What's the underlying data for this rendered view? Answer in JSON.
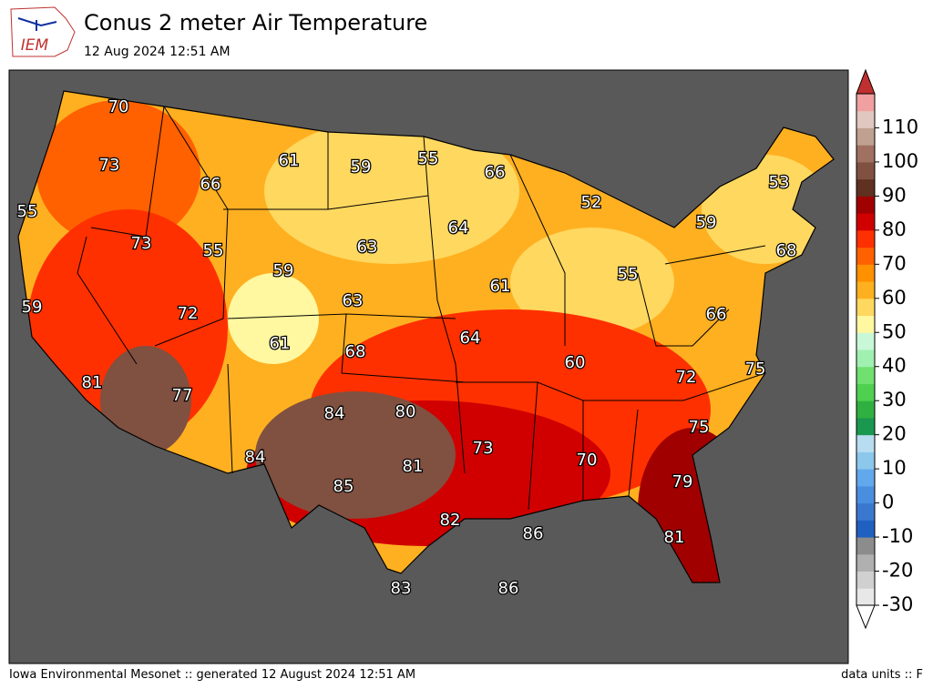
{
  "header": {
    "logo": "IEM",
    "title": "Conus 2 meter Air Temperature",
    "subtitle": "12 Aug 2024 12:51 AM"
  },
  "map": {
    "labels": [
      "70",
      "73",
      "55",
      "73",
      "55",
      "59",
      "72",
      "81",
      "77",
      "61",
      "66",
      "59",
      "55",
      "66",
      "52",
      "53",
      "59",
      "68",
      "64",
      "63",
      "59",
      "63",
      "61",
      "55",
      "61",
      "68",
      "64",
      "66",
      "60",
      "72",
      "75",
      "84",
      "80",
      "84",
      "81",
      "73",
      "70",
      "75",
      "85",
      "82",
      "86",
      "79",
      "81",
      "83",
      "86"
    ]
  },
  "colorbar": {
    "ticks": [
      "110",
      "100",
      "90",
      "80",
      "70",
      "60",
      "50",
      "40",
      "30",
      "20",
      "10",
      "0",
      "-10",
      "-20",
      "-30"
    ],
    "colors": [
      "#e8e8e8",
      "#d0d0d0",
      "#b0b0b0",
      "#8c8c8c",
      "#2060c0",
      "#3a78d0",
      "#4a8ee0",
      "#62a8ec",
      "#8cc8ec",
      "#b8dcf0",
      "#1a9850",
      "#30b040",
      "#50d050",
      "#70e070",
      "#a0f0b0",
      "#c8f8d8",
      "#fff8a0",
      "#ffd860",
      "#ffb020",
      "#ff9000",
      "#ff6000",
      "#ff3000",
      "#d00000",
      "#a00000",
      "#603020",
      "#805040",
      "#a07060",
      "#c0a090",
      "#e0c8c0",
      "#f0a0a0"
    ],
    "over_color": "#c03030",
    "under_color": "#ffffff"
  },
  "footer": {
    "left": "Iowa Environmental Mesonet :: generated 12 August 2024 12:51 AM",
    "right": "data units :: F"
  }
}
